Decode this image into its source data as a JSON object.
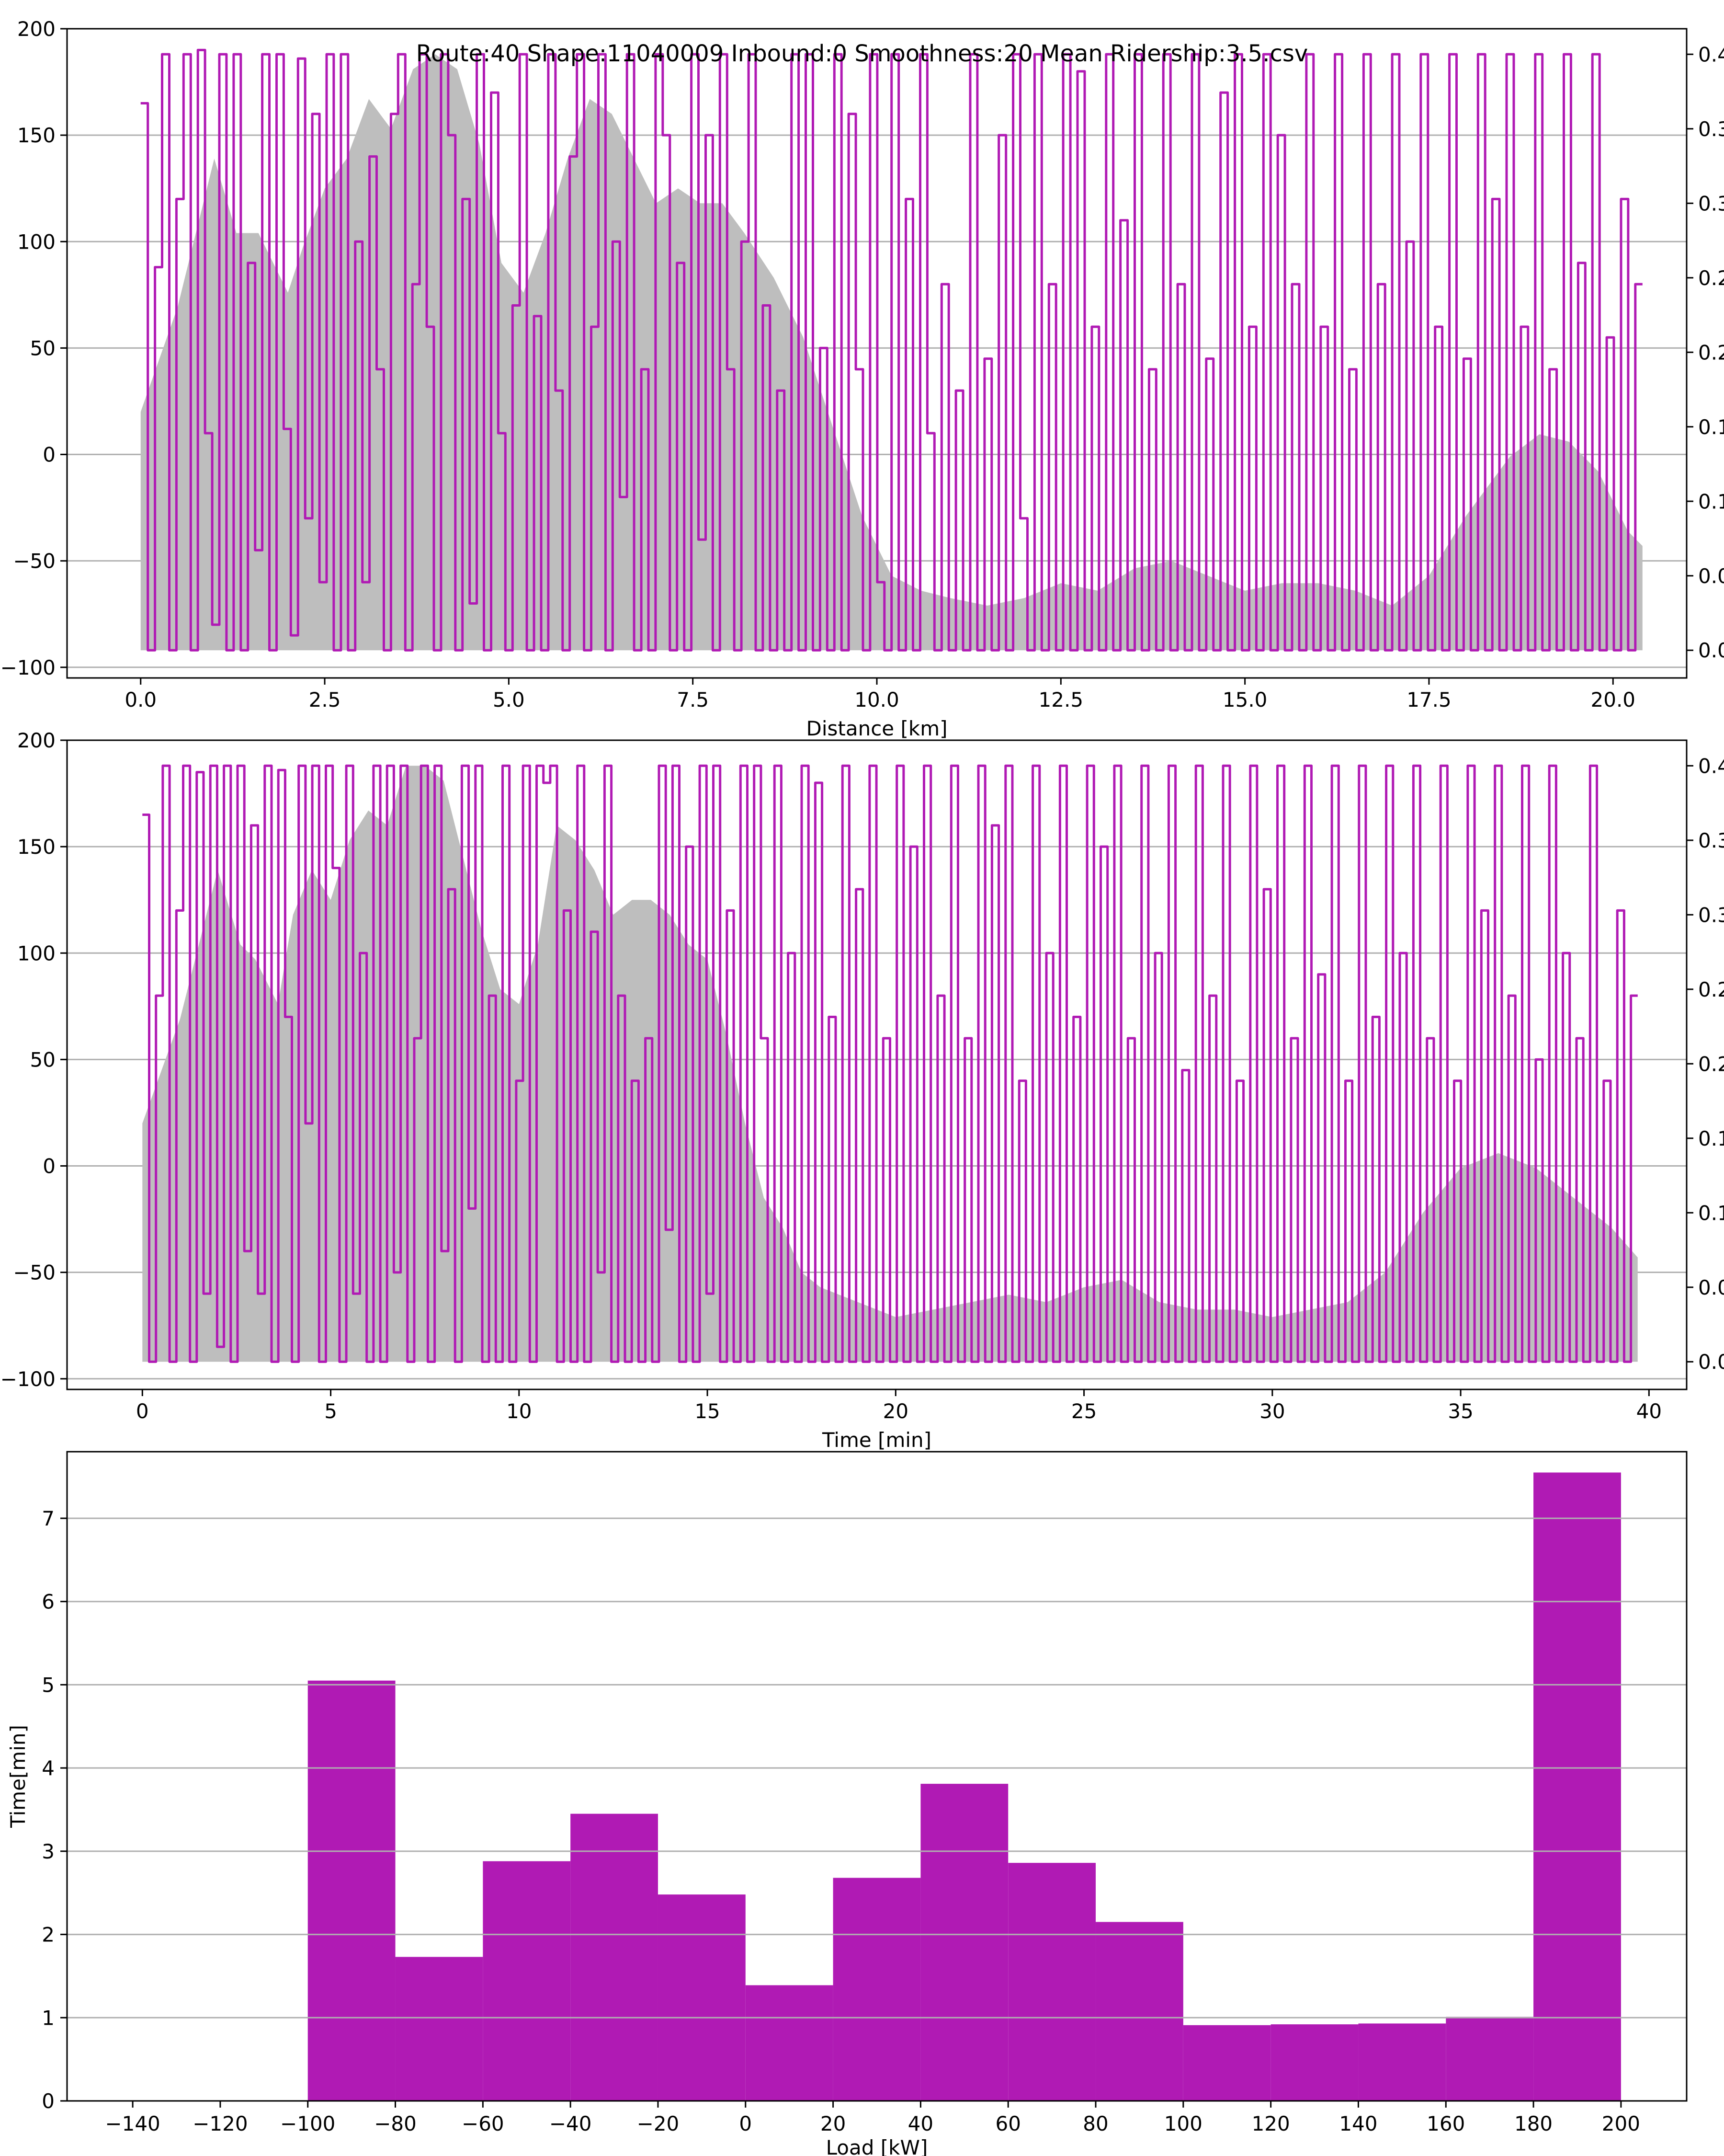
{
  "figure": {
    "title": "Route:40 Shape:11040009 Inbound:0 Smoothness:20 Mean Ridership:3.5.csv"
  },
  "colors": {
    "load": "#b01ab4",
    "elevation": "#bebebe",
    "grid": "#b0b0b0"
  },
  "chart_data": [
    {
      "type": "line",
      "xlabel": "Distance [km]",
      "ylabel": "",
      "xlim": [
        -1,
        21
      ],
      "ylim": [
        -105,
        200
      ],
      "xticks": [
        0.0,
        2.5,
        5.0,
        7.5,
        10.0,
        12.5,
        15.0,
        17.5,
        20.0
      ],
      "xtick_labels": [
        "0.0",
        "2.5",
        "5.0",
        "7.5",
        "10.0",
        "12.5",
        "15.0",
        "17.5",
        "20.0"
      ],
      "yticks": [
        -100,
        -50,
        0,
        50,
        100,
        150,
        200
      ],
      "ytick_labels": [
        "−100",
        "−50",
        "0",
        "50",
        "100",
        "150",
        "200"
      ],
      "right_yticks": [
        0.0,
        0.05,
        0.1,
        0.15,
        0.2,
        0.25,
        0.3,
        0.35,
        0.4
      ],
      "right_ytick_labels": [
        "0.0",
        "0.0",
        "0.1",
        "0.1",
        "0.2",
        "0.2",
        "0.3",
        "0.3",
        "0.4"
      ],
      "load_range": [
        -92,
        188
      ],
      "grid": "y",
      "series": [
        {
          "role": "elevation-area",
          "x": [
            0,
            0.5,
            0.8,
            1.0,
            1.3,
            1.6,
            1.8,
            2.0,
            2.2,
            2.5,
            2.8,
            3.1,
            3.4,
            3.7,
            4.0,
            4.3,
            4.6,
            4.9,
            5.2,
            5.5,
            5.8,
            6.1,
            6.4,
            6.7,
            7.0,
            7.3,
            7.6,
            7.9,
            8.2,
            8.6,
            9.0,
            9.4,
            9.8,
            10.2,
            10.6,
            11.0,
            11.5,
            12.0,
            12.5,
            13.0,
            13.5,
            14.0,
            14.5,
            15.0,
            15.5,
            16.0,
            16.5,
            17.0,
            17.5,
            18.0,
            18.3,
            18.6,
            19.0,
            19.4,
            19.8,
            20.2,
            20.4
          ],
          "y": [
            0.16,
            0.23,
            0.29,
            0.33,
            0.28,
            0.28,
            0.26,
            0.24,
            0.27,
            0.31,
            0.33,
            0.37,
            0.35,
            0.39,
            0.4,
            0.39,
            0.34,
            0.26,
            0.24,
            0.28,
            0.33,
            0.37,
            0.36,
            0.33,
            0.3,
            0.31,
            0.3,
            0.3,
            0.28,
            0.25,
            0.21,
            0.15,
            0.09,
            0.05,
            0.04,
            0.035,
            0.03,
            0.035,
            0.045,
            0.04,
            0.055,
            0.06,
            0.05,
            0.04,
            0.045,
            0.045,
            0.04,
            0.03,
            0.05,
            0.09,
            0.11,
            0.13,
            0.145,
            0.14,
            0.12,
            0.08,
            0.07
          ]
        },
        {
          "role": "load-line",
          "x_max": 20.4,
          "y": [
            165,
            -92,
            88,
            188,
            -92,
            120,
            188,
            -92,
            190,
            10,
            -80,
            188,
            -92,
            188,
            -92,
            90,
            -45,
            188,
            -92,
            188,
            12,
            -85,
            186,
            -30,
            160,
            -60,
            188,
            -92,
            188,
            -92,
            100,
            -60,
            140,
            40,
            -92,
            160,
            188,
            -92,
            80,
            188,
            60,
            -92,
            188,
            150,
            -92,
            120,
            -70,
            188,
            -92,
            170,
            10,
            -92,
            70,
            188,
            -92,
            65,
            -92,
            188,
            30,
            -92,
            140,
            188,
            -92,
            60,
            188,
            -92,
            100,
            -20,
            188,
            -92,
            40,
            -92,
            188,
            150,
            -92,
            90,
            -92,
            188,
            -40,
            150,
            -92,
            188,
            40,
            -92,
            100,
            188,
            -92,
            70,
            -92,
            30,
            -92,
            188,
            -92,
            188,
            -92,
            50,
            -92,
            188,
            -92,
            160,
            40,
            -92,
            188,
            -60,
            -92,
            188,
            -92,
            120,
            -92,
            188,
            10,
            -92,
            80,
            -92,
            30,
            -92,
            188,
            -92,
            45,
            -92,
            150,
            -92,
            188,
            -30,
            -92,
            188,
            -92,
            80,
            -92,
            188,
            -92,
            180,
            -92,
            60,
            -92,
            188,
            -92,
            110,
            -92,
            188,
            -92,
            40,
            -92,
            188,
            -92,
            80,
            -92,
            188,
            -92,
            45,
            -92,
            170,
            -92,
            188,
            -92,
            60,
            -92,
            188,
            -92,
            150,
            -92,
            80,
            -92,
            188,
            -92,
            60,
            -92,
            188,
            -92,
            40,
            -92,
            188,
            -92,
            80,
            -92,
            188,
            -92,
            100,
            -92,
            188,
            -92,
            60,
            -92,
            188,
            -92,
            45,
            -92,
            188,
            -92,
            120,
            -92,
            188,
            -92,
            60,
            -92,
            188,
            -92,
            40,
            -92,
            188,
            -92,
            90,
            -92,
            188,
            -92,
            55,
            -92,
            120,
            -92,
            80
          ]
        }
      ]
    },
    {
      "type": "line",
      "xlabel": "Time [min]",
      "ylabel": "",
      "xlim": [
        -2,
        41
      ],
      "ylim": [
        -105,
        200
      ],
      "xticks": [
        0,
        5,
        10,
        15,
        20,
        25,
        30,
        35,
        40
      ],
      "xtick_labels": [
        "0",
        "5",
        "10",
        "15",
        "20",
        "25",
        "30",
        "35",
        "40"
      ],
      "yticks": [
        -100,
        -50,
        0,
        50,
        100,
        150,
        200
      ],
      "ytick_labels": [
        "−100",
        "−50",
        "0",
        "50",
        "100",
        "150",
        "200"
      ],
      "right_yticks": [
        0.0,
        0.05,
        0.1,
        0.15,
        0.2,
        0.25,
        0.3,
        0.35,
        0.4
      ],
      "right_ytick_labels": [
        "0.0",
        "0.0",
        "0.1",
        "0.1",
        "0.2",
        "0.2",
        "0.3",
        "0.3",
        "0.4"
      ],
      "load_range": [
        -92,
        188
      ],
      "grid": "y",
      "series": [
        {
          "role": "elevation-area",
          "x": [
            0,
            1,
            1.6,
            2,
            2.6,
            3,
            3.6,
            4,
            4.5,
            5,
            5.5,
            6,
            6.5,
            7,
            7.5,
            8,
            8.5,
            9,
            9.5,
            10,
            10.5,
            11,
            11.5,
            12,
            12.5,
            13,
            13.5,
            14,
            14.5,
            15,
            15.5,
            16,
            16.5,
            17,
            17.5,
            18,
            19,
            20,
            21,
            22,
            23,
            24,
            25,
            26,
            27,
            28,
            29,
            30,
            31,
            32,
            33,
            34,
            35,
            36,
            37,
            38,
            39,
            39.7
          ],
          "y": [
            0.16,
            0.23,
            0.29,
            0.33,
            0.28,
            0.27,
            0.24,
            0.3,
            0.33,
            0.31,
            0.35,
            0.37,
            0.36,
            0.4,
            0.4,
            0.39,
            0.34,
            0.29,
            0.25,
            0.24,
            0.28,
            0.36,
            0.35,
            0.33,
            0.3,
            0.31,
            0.31,
            0.3,
            0.28,
            0.27,
            0.22,
            0.16,
            0.11,
            0.09,
            0.06,
            0.05,
            0.04,
            0.03,
            0.035,
            0.04,
            0.045,
            0.04,
            0.05,
            0.055,
            0.04,
            0.035,
            0.035,
            0.03,
            0.035,
            0.04,
            0.06,
            0.1,
            0.13,
            0.14,
            0.13,
            0.11,
            0.09,
            0.07
          ]
        },
        {
          "role": "load-line",
          "x_max": 39.7,
          "y": [
            165,
            -92,
            80,
            188,
            -92,
            120,
            188,
            -92,
            185,
            -60,
            188,
            -85,
            188,
            -92,
            188,
            -40,
            160,
            -60,
            188,
            -92,
            186,
            70,
            -92,
            188,
            20,
            188,
            -92,
            188,
            140,
            -92,
            188,
            -60,
            100,
            -92,
            188,
            -92,
            188,
            -50,
            188,
            -92,
            60,
            188,
            -92,
            188,
            -40,
            130,
            -92,
            188,
            -20,
            188,
            -92,
            80,
            -92,
            188,
            -92,
            40,
            188,
            -92,
            188,
            180,
            188,
            -92,
            120,
            -92,
            188,
            -92,
            110,
            -50,
            188,
            -92,
            80,
            -92,
            40,
            -92,
            60,
            -92,
            188,
            -30,
            188,
            -92,
            150,
            -92,
            188,
            -60,
            188,
            -92,
            120,
            -92,
            188,
            -92,
            188,
            60,
            -92,
            188,
            -92,
            100,
            -92,
            188,
            -92,
            180,
            -92,
            70,
            -92,
            188,
            -92,
            130,
            -92,
            188,
            -92,
            60,
            -92,
            188,
            -92,
            150,
            -92,
            188,
            -92,
            80,
            -92,
            188,
            -92,
            60,
            -92,
            188,
            -92,
            160,
            -92,
            188,
            -92,
            40,
            -92,
            188,
            -92,
            100,
            -92,
            188,
            -92,
            70,
            -92,
            188,
            -92,
            150,
            -92,
            188,
            -92,
            60,
            -92,
            188,
            -92,
            100,
            -92,
            188,
            -92,
            45,
            -92,
            188,
            -92,
            80,
            -92,
            188,
            -92,
            40,
            -92,
            188,
            -92,
            130,
            -92,
            188,
            -92,
            60,
            -92,
            188,
            -92,
            90,
            -92,
            188,
            -92,
            40,
            -92,
            188,
            -92,
            70,
            -92,
            188,
            -92,
            100,
            -92,
            188,
            -92,
            60,
            -92,
            188,
            -92,
            40,
            -92,
            188,
            -92,
            120,
            -92,
            188,
            -92,
            80,
            -92,
            188,
            -92,
            50,
            -92,
            188,
            -92,
            100,
            -92,
            60,
            -92,
            188,
            -92,
            40,
            -92,
            120,
            -92,
            80
          ]
        }
      ]
    },
    {
      "type": "bar",
      "xlabel": "Load [kW]",
      "ylabel": "Time[min]",
      "xlim": [
        -155,
        215
      ],
      "ylim": [
        0,
        7.8
      ],
      "xticks": [
        -140,
        -120,
        -100,
        -80,
        -60,
        -40,
        -20,
        0,
        20,
        40,
        60,
        80,
        100,
        120,
        140,
        160,
        180,
        200
      ],
      "xtick_labels": [
        "−140",
        "−120",
        "−100",
        "−80",
        "−60",
        "−40",
        "−20",
        "0",
        "20",
        "40",
        "60",
        "80",
        "100",
        "120",
        "140",
        "160",
        "180",
        "200"
      ],
      "yticks": [
        0,
        1,
        2,
        3,
        4,
        5,
        6,
        7
      ],
      "ytick_labels": [
        "0",
        "1",
        "2",
        "3",
        "4",
        "5",
        "6",
        "7"
      ],
      "grid": "y",
      "bin_edges": [
        -100,
        -80,
        -60,
        -40,
        -20,
        0,
        20,
        40,
        60,
        80,
        100,
        120,
        140,
        160,
        180,
        200
      ],
      "values": [
        5.05,
        1.73,
        2.88,
        3.45,
        2.48,
        1.39,
        2.68,
        3.81,
        2.86,
        2.15,
        0.91,
        0.92,
        0.93,
        1.01,
        7.55
      ]
    }
  ]
}
